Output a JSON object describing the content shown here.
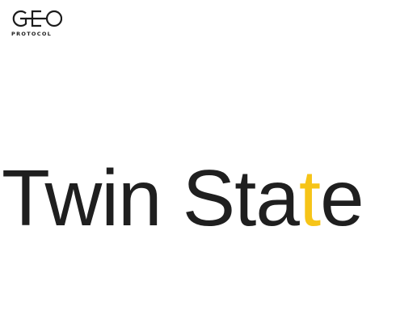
{
  "brand": {
    "logo_text": "PROTOCOL",
    "logo_mark_letters": "GEO",
    "text_color": "#1b1b1b"
  },
  "hero": {
    "title_before": "Twin Sta",
    "title_accent": "t",
    "title_after": "e",
    "text_color": "#1f1f1f",
    "accent_color": "#f6c418"
  }
}
